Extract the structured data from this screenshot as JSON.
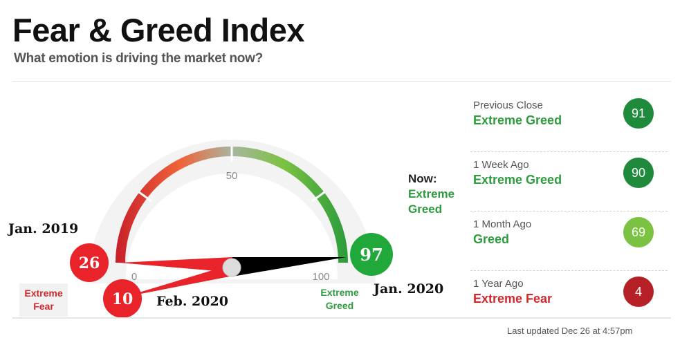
{
  "header": {
    "title": "Fear & Greed Index",
    "subtitle": "What emotion is driving the market now?"
  },
  "gauge": {
    "tick_min": "0",
    "tick_mid": "50",
    "tick_max": "100",
    "left_label": "Extreme Fear",
    "right_label": "Extreme Greed",
    "now_label": "Now:",
    "now_value": "Extreme Greed",
    "markers": [
      {
        "value": "26",
        "annotation": "Jan. 2019",
        "color": "#e8232a"
      },
      {
        "value": "10",
        "annotation": "Feb. 2020",
        "color": "#e8232a"
      },
      {
        "value": "97",
        "annotation": "Jan. 2020",
        "color": "#20a83a"
      }
    ]
  },
  "history": [
    {
      "period": "Previous Close",
      "label": "Extreme Greed",
      "value": "91",
      "label_color": "#2e9b3e",
      "badge_color": "#1f8a3b"
    },
    {
      "period": "1 Week Ago",
      "label": "Extreme Greed",
      "value": "90",
      "label_color": "#2e9b3e",
      "badge_color": "#1f8a3b"
    },
    {
      "period": "1 Month Ago",
      "label": "Greed",
      "value": "69",
      "label_color": "#2e9b3e",
      "badge_color": "#7cc242"
    },
    {
      "period": "1 Year Ago",
      "label": "Extreme Fear",
      "value": "4",
      "label_color": "#d0282c",
      "badge_color": "#b52127"
    }
  ],
  "footer": {
    "last_updated": "Last updated Dec 26 at 4:57pm"
  }
}
